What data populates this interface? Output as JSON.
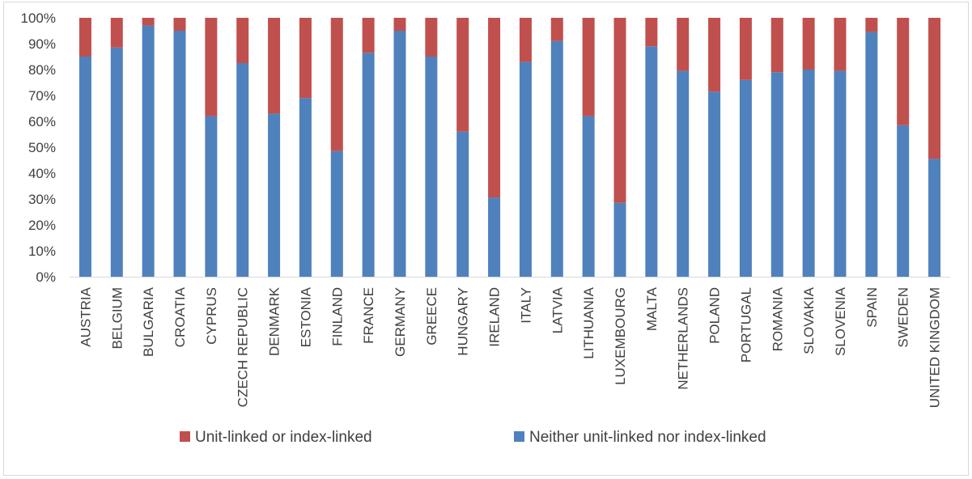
{
  "chart_data": {
    "type": "bar",
    "stacked": true,
    "percent_stacked": true,
    "categories": [
      "AUSTRIA",
      "BELGIUM",
      "BULGARIA",
      "CROATIA",
      "CYPRUS",
      "CZECH REPUBLIC",
      "DENMARK",
      "ESTONIA",
      "FINLAND",
      "FRANCE",
      "GERMANY",
      "GREECE",
      "HUNGARY",
      "IRELAND",
      "ITALY",
      "LATVIA",
      "LITHUANIA",
      "LUXEMBOURG",
      "MALTA",
      "NETHERLANDS",
      "POLAND",
      "PORTUGAL",
      "ROMANIA",
      "SLOVAKIA",
      "SLOVENIA",
      "SPAIN",
      "SWEDEN",
      "UNITED KINGDOM"
    ],
    "series": [
      {
        "name": "Neither unit-linked nor index-linked",
        "color": "#4f81bd",
        "values": [
          85,
          88.5,
          97,
          95,
          62,
          82.5,
          63,
          69,
          48.5,
          86.5,
          95,
          85,
          56,
          30.5,
          83,
          91,
          62,
          28.5,
          89,
          79.5,
          71.5,
          76,
          79,
          80,
          79.5,
          94.5,
          58.5,
          45.5
        ]
      },
      {
        "name": "Unit-linked or index-linked",
        "color": "#c0504d",
        "values": [
          15,
          11.5,
          3,
          5,
          38,
          17.5,
          37,
          31,
          51.5,
          13.5,
          5,
          15,
          44,
          69.5,
          17,
          9,
          38,
          71.5,
          11,
          20.5,
          28.5,
          24,
          21,
          20,
          20.5,
          5.5,
          41.5,
          54.5
        ]
      }
    ],
    "y_ticks": [
      "0%",
      "10%",
      "20%",
      "30%",
      "40%",
      "50%",
      "60%",
      "70%",
      "80%",
      "90%",
      "100%"
    ],
    "ylim": [
      0,
      100
    ],
    "title": "",
    "xlabel": "",
    "ylabel": "",
    "grid": false,
    "legend_placement": "bottom",
    "legend_order": [
      "Unit-linked or index-linked",
      "Neither unit-linked nor index-linked"
    ]
  }
}
